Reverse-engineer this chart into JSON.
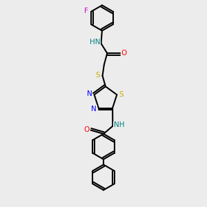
{
  "bg_color": "#ececec",
  "bond_color": "#000000",
  "N_color": "#0000ff",
  "O_color": "#ff0000",
  "S_color": "#ccaa00",
  "F_color": "#cc00cc",
  "H_color": "#008080",
  "line_width": 1.5,
  "figsize": [
    3.0,
    3.0
  ],
  "dpi": 100,
  "xlim": [
    0,
    10
  ],
  "ylim": [
    0,
    10
  ]
}
